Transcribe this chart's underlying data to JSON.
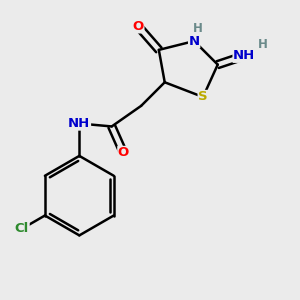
{
  "background_color": "#ebebeb",
  "atom_colors": {
    "C": "#000000",
    "N": "#0000cc",
    "O": "#ff0000",
    "S": "#bbaa00",
    "Cl": "#2d8a2d",
    "H": "#6a8a8a"
  },
  "bond_color": "#000000",
  "figsize": [
    3.0,
    3.0
  ],
  "dpi": 100
}
